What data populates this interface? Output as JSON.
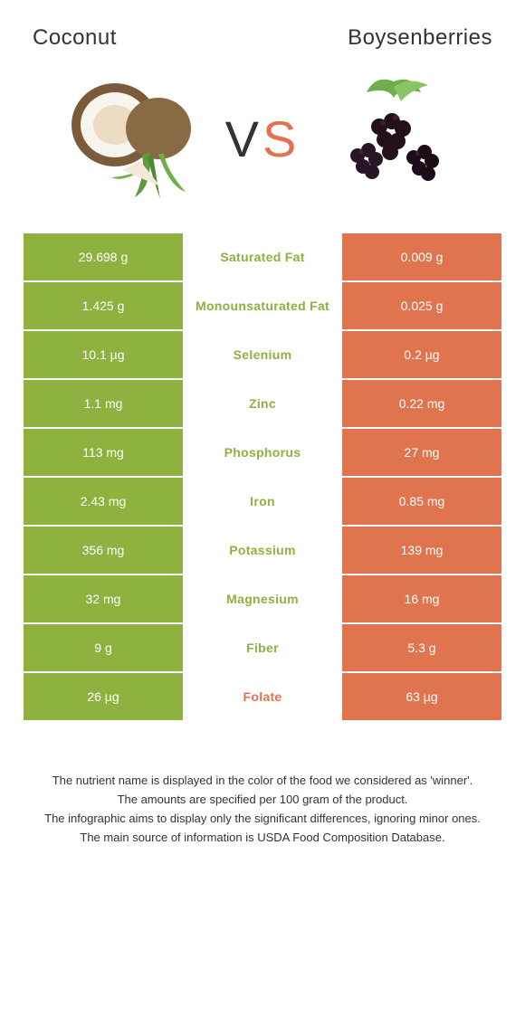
{
  "colors": {
    "left_bg": "#8eb13f",
    "right_bg": "#e0744e",
    "left_text": "#8eb13f",
    "right_text": "#e0744e",
    "white": "#ffffff",
    "text": "#333333"
  },
  "header": {
    "left_title": "Coconut",
    "right_title": "Boysenberries"
  },
  "hero": {
    "vs_v": "V",
    "vs_s": "S"
  },
  "nutrients": [
    {
      "label": "Saturated Fat",
      "left": "29.698 g",
      "right": "0.009 g",
      "winner": "left"
    },
    {
      "label": "Monounsaturated Fat",
      "left": "1.425 g",
      "right": "0.025 g",
      "winner": "left"
    },
    {
      "label": "Selenium",
      "left": "10.1 µg",
      "right": "0.2 µg",
      "winner": "left"
    },
    {
      "label": "Zinc",
      "left": "1.1 mg",
      "right": "0.22 mg",
      "winner": "left"
    },
    {
      "label": "Phosphorus",
      "left": "113 mg",
      "right": "27 mg",
      "winner": "left"
    },
    {
      "label": "Iron",
      "left": "2.43 mg",
      "right": "0.85 mg",
      "winner": "left"
    },
    {
      "label": "Potassium",
      "left": "356 mg",
      "right": "139 mg",
      "winner": "left"
    },
    {
      "label": "Magnesium",
      "left": "32 mg",
      "right": "16 mg",
      "winner": "left"
    },
    {
      "label": "Fiber",
      "left": "9 g",
      "right": "5.3 g",
      "winner": "left"
    },
    {
      "label": "Folate",
      "left": "26 µg",
      "right": "63 µg",
      "winner": "right"
    }
  ],
  "footer": {
    "line1": "The nutrient name is displayed in the color of the food we considered as 'winner'.",
    "line2": "The amounts are specified per 100 gram of the product.",
    "line3": "The infographic aims to display only the significant differences, ignoring minor ones.",
    "line4": "The main source of information is USDA Food Composition Database."
  }
}
